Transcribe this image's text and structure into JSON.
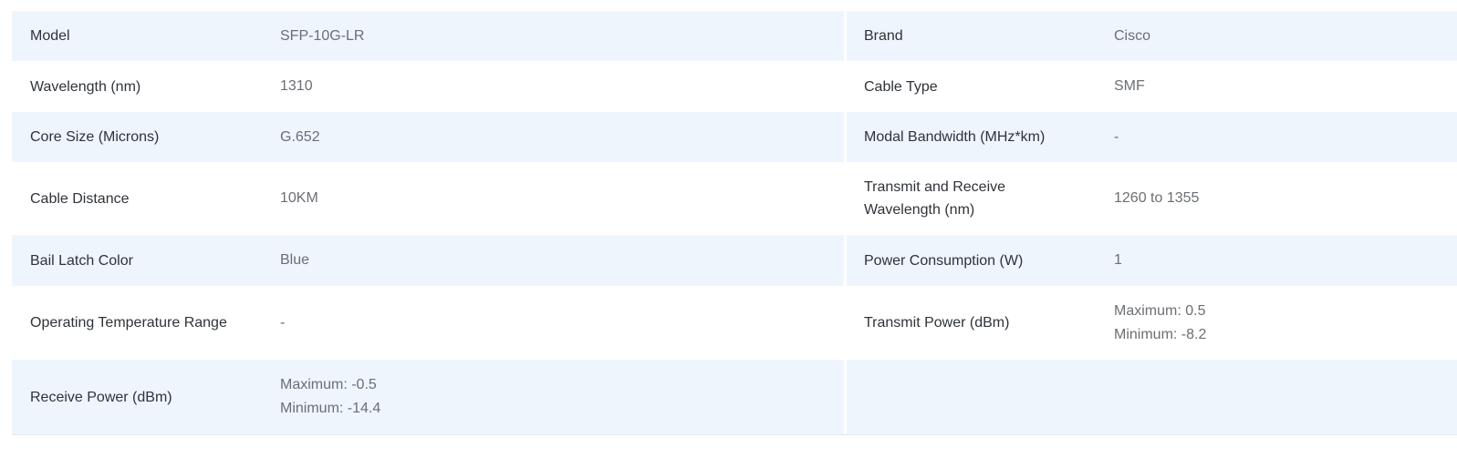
{
  "rows": [
    {
      "left": {
        "label": "Model",
        "value": "SFP-10G-LR"
      },
      "right": {
        "label": "Brand",
        "value": "Cisco"
      }
    },
    {
      "left": {
        "label": "Wavelength (nm)",
        "value": "1310"
      },
      "right": {
        "label": "Cable Type",
        "value": "SMF"
      }
    },
    {
      "left": {
        "label": "Core Size (Microns)",
        "value": "G.652"
      },
      "right": {
        "label": "Modal Bandwidth (MHz*km)",
        "value": "-"
      }
    },
    {
      "left": {
        "label": "Cable Distance",
        "value": "10KM"
      },
      "right": {
        "label": "Transmit and Receive Wavelength (nm)",
        "value": "1260 to 1355"
      }
    },
    {
      "left": {
        "label": "Bail Latch Color",
        "value": "Blue"
      },
      "right": {
        "label": "Power Consumption (W)",
        "value": "1"
      }
    },
    {
      "left": {
        "label": "Operating Temperature Range",
        "value": "-"
      },
      "right": {
        "label": "Transmit Power (dBm)",
        "value": "Maximum: 0.5",
        "value2": "Minimum: -8.2"
      }
    },
    {
      "left": {
        "label": "Receive Power (dBm)",
        "value": "Maximum: -0.5",
        "value2": "Minimum: -14.4"
      },
      "right": {
        "label": "",
        "value": ""
      }
    }
  ]
}
